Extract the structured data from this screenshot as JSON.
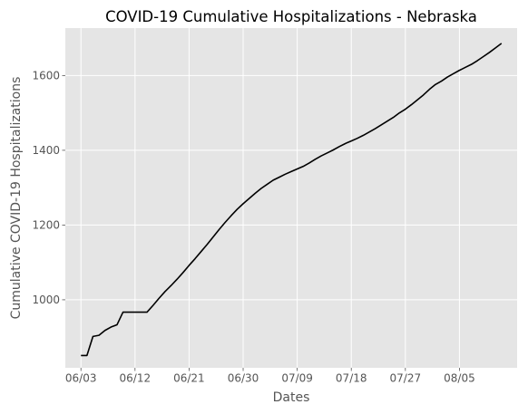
{
  "chart_data": {
    "type": "line",
    "title": "COVID-19 Cumulative Hospitalizations - Nebraska",
    "xlabel": "Dates",
    "ylabel": "Cumulative COVID-19 Hospitalizations",
    "grid": true,
    "x_tick_labels": [
      "06/03",
      "06/12",
      "06/21",
      "06/30",
      "07/09",
      "07/18",
      "07/27",
      "08/05"
    ],
    "y_ticks": [
      1000,
      1200,
      1400,
      1600
    ],
    "ylim": [
      818,
      1727
    ],
    "x": [
      "06/03",
      "06/04",
      "06/05",
      "06/06",
      "06/07",
      "06/08",
      "06/09",
      "06/10",
      "06/11",
      "06/12",
      "06/13",
      "06/14",
      "06/15",
      "06/16",
      "06/17",
      "06/18",
      "06/19",
      "06/20",
      "06/21",
      "06/22",
      "06/23",
      "06/24",
      "06/25",
      "06/26",
      "06/27",
      "06/28",
      "06/29",
      "06/30",
      "07/01",
      "07/02",
      "07/03",
      "07/04",
      "07/05",
      "07/06",
      "07/07",
      "07/08",
      "07/09",
      "07/10",
      "07/11",
      "07/12",
      "07/13",
      "07/14",
      "07/15",
      "07/16",
      "07/17",
      "07/18",
      "07/19",
      "07/20",
      "07/21",
      "07/22",
      "07/23",
      "07/24",
      "07/25",
      "07/26",
      "07/27",
      "07/28",
      "07/29",
      "07/30",
      "07/31",
      "08/01",
      "08/02",
      "08/03",
      "08/04",
      "08/05",
      "08/06",
      "08/07",
      "08/08",
      "08/09",
      "08/10",
      "08/11",
      "08/12"
    ],
    "series": [
      {
        "color": "#000000",
        "values": [
          851,
          851,
          902,
          905,
          918,
          927,
          933,
          967,
          967,
          967,
          967,
          967,
          985,
          1004,
          1022,
          1038,
          1055,
          1073,
          1092,
          1110,
          1129,
          1148,
          1168,
          1188,
          1207,
          1225,
          1242,
          1257,
          1271,
          1285,
          1298,
          1309,
          1320,
          1328,
          1336,
          1343,
          1350,
          1357,
          1366,
          1376,
          1385,
          1393,
          1401,
          1410,
          1418,
          1425,
          1432,
          1440,
          1449,
          1458,
          1468,
          1478,
          1488,
          1500,
          1510,
          1522,
          1535,
          1548,
          1563,
          1576,
          1585,
          1596,
          1605,
          1614,
          1622,
          1630,
          1640,
          1651,
          1662,
          1674,
          1686
        ]
      }
    ]
  }
}
